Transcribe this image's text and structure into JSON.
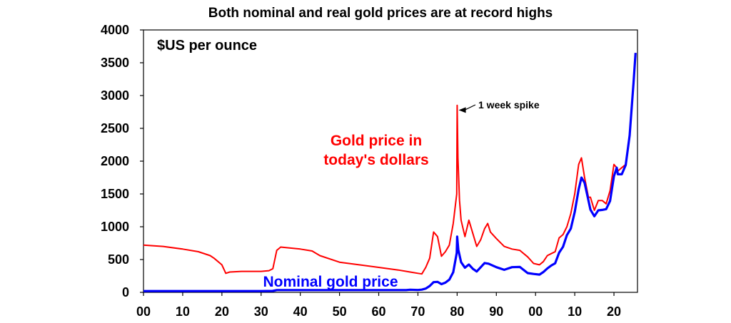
{
  "chart_data": {
    "type": "line",
    "title": "Both nominal and real gold prices are at record highs",
    "unit_label": "$US per ounce",
    "ylim": [
      0,
      4000
    ],
    "y_ticks": [
      "0",
      "500",
      "1000",
      "1500",
      "2000",
      "2500",
      "3000",
      "3500",
      "4000"
    ],
    "xlim": [
      1900,
      2026
    ],
    "x_ticks": [
      "00",
      "10",
      "20",
      "30",
      "40",
      "50",
      "60",
      "70",
      "80",
      "90",
      "00",
      "10",
      "20"
    ],
    "grid": false,
    "colors": {
      "real": "#ff0000",
      "nominal": "#0000ff"
    },
    "annotation": "1 week spike",
    "series": [
      {
        "name": "Gold price in today's dollars",
        "label_lines": [
          "Gold price in",
          "today's dollars"
        ],
        "color": "#ff0000",
        "x": [
          1900,
          1905,
          1910,
          1914,
          1917,
          1918,
          1920,
          1921,
          1922,
          1925,
          1930,
          1932,
          1933,
          1934,
          1935,
          1940,
          1943,
          1945,
          1950,
          1955,
          1960,
          1965,
          1968,
          1970,
          1971,
          1972,
          1973,
          1974,
          1975,
          1976,
          1977,
          1978,
          1979,
          1979.9,
          1980.0,
          1980.2,
          1980.6,
          1981,
          1982,
          1983,
          1984,
          1985,
          1986,
          1987,
          1987.8,
          1988.5,
          1990,
          1992,
          1994,
          1996,
          1998,
          1999.5,
          2001,
          2002,
          2003,
          2004,
          2005,
          2006,
          2007,
          2008,
          2009,
          2010,
          2011,
          2011.7,
          2012.5,
          2013.5,
          2014,
          2015,
          2016,
          2017,
          2018,
          2019,
          2020,
          2020.7,
          2021,
          2022,
          2023,
          2024,
          2025,
          2025.5
        ],
        "y": [
          720,
          700,
          660,
          620,
          560,
          520,
          420,
          290,
          310,
          320,
          320,
          330,
          360,
          640,
          690,
          660,
          630,
          560,
          460,
          420,
          380,
          340,
          310,
          290,
          280,
          380,
          520,
          920,
          850,
          550,
          620,
          720,
          1050,
          1500,
          2850,
          2050,
          1400,
          1100,
          850,
          1100,
          900,
          700,
          800,
          970,
          1050,
          920,
          820,
          700,
          660,
          640,
          540,
          440,
          420,
          470,
          560,
          590,
          620,
          830,
          880,
          1000,
          1200,
          1500,
          1950,
          2050,
          1750,
          1450,
          1450,
          1250,
          1400,
          1400,
          1350,
          1550,
          1950,
          1900,
          1850,
          1900,
          1950,
          2400,
          3200,
          3650
        ]
      },
      {
        "name": "Nominal gold price",
        "label_lines": [
          "Nominal gold price"
        ],
        "color": "#0000ff",
        "x": [
          1900,
          1910,
          1920,
          1930,
          1933,
          1934,
          1940,
          1950,
          1960,
          1967,
          1968,
          1970,
          1971,
          1972,
          1973,
          1974,
          1975,
          1976,
          1977,
          1978,
          1979,
          1979.9,
          1980.0,
          1980.3,
          1981,
          1982,
          1983,
          1984,
          1985,
          1987,
          1988,
          1990,
          1992,
          1994,
          1996,
          1998,
          1999.5,
          2001,
          2002,
          2003,
          2004,
          2005,
          2006,
          2007,
          2008,
          2009,
          2010,
          2011,
          2011.7,
          2012.5,
          2013.5,
          2014,
          2015,
          2016,
          2017,
          2018,
          2019,
          2020,
          2020.7,
          2021,
          2022,
          2023,
          2024,
          2025,
          2025.5
        ],
        "y": [
          20,
          20,
          20,
          20,
          22,
          35,
          35,
          35,
          35,
          35,
          40,
          36,
          41,
          58,
          97,
          155,
          160,
          125,
          148,
          193,
          307,
          600,
          850,
          650,
          460,
          376,
          424,
          360,
          317,
          447,
          437,
          384,
          343,
          384,
          387,
          294,
          280,
          271,
          310,
          364,
          409,
          444,
          604,
          695,
          872,
          972,
          1225,
          1570,
          1750,
          1670,
          1400,
          1260,
          1160,
          1250,
          1257,
          1268,
          1393,
          1770,
          1900,
          1800,
          1800,
          1940,
          2390,
          3200,
          3650
        ]
      }
    ]
  }
}
